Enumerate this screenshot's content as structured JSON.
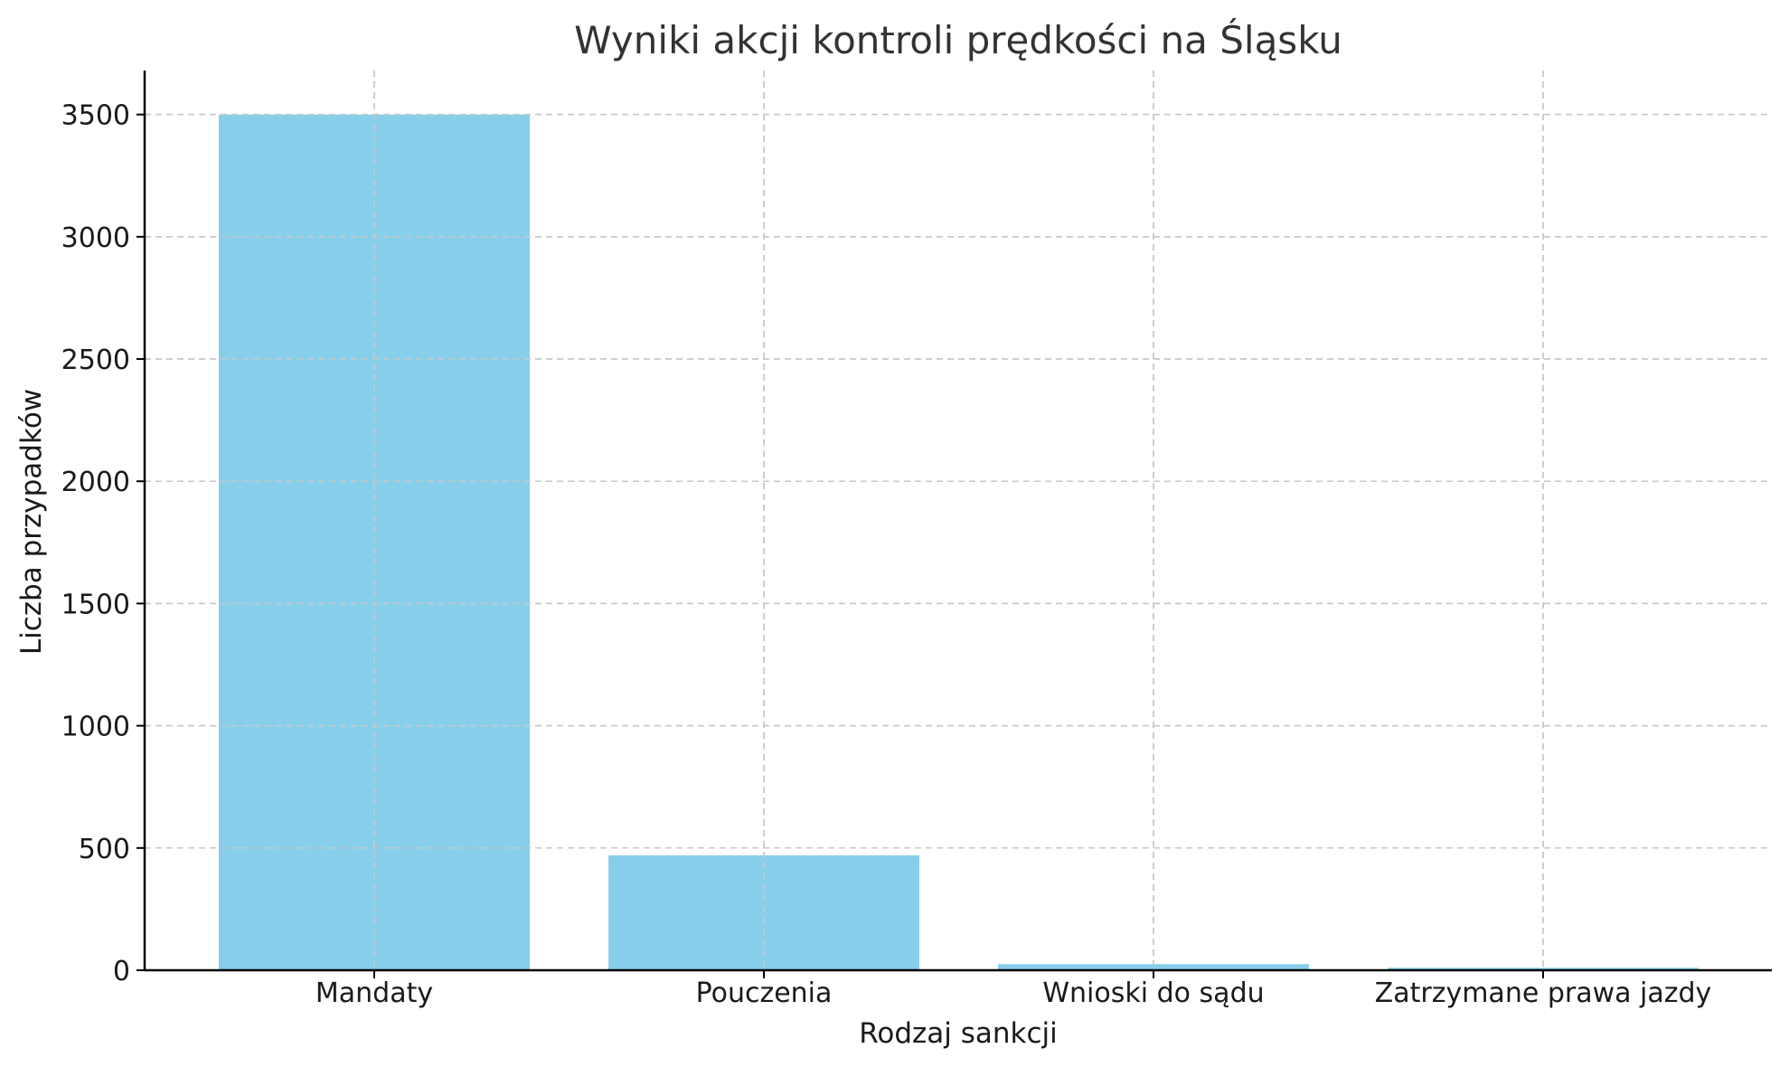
{
  "chart_data": {
    "type": "bar",
    "title": "Wyniki akcji kontroli prędkości na Śląsku",
    "xlabel": "Rodzaj sankcji",
    "ylabel": "Liczba przypadków",
    "categories": [
      "Mandaty",
      "Pouczenia",
      "Wnioski do sądu",
      "Zatrzymane prawa jazdy"
    ],
    "values": [
      3500,
      470,
      25,
      10
    ],
    "ylim": [
      0,
      3680
    ],
    "yticks": [
      0,
      500,
      1000,
      1500,
      2000,
      2500,
      3000,
      3500
    ],
    "grid": true,
    "bar_color": "#87ceeb"
  }
}
